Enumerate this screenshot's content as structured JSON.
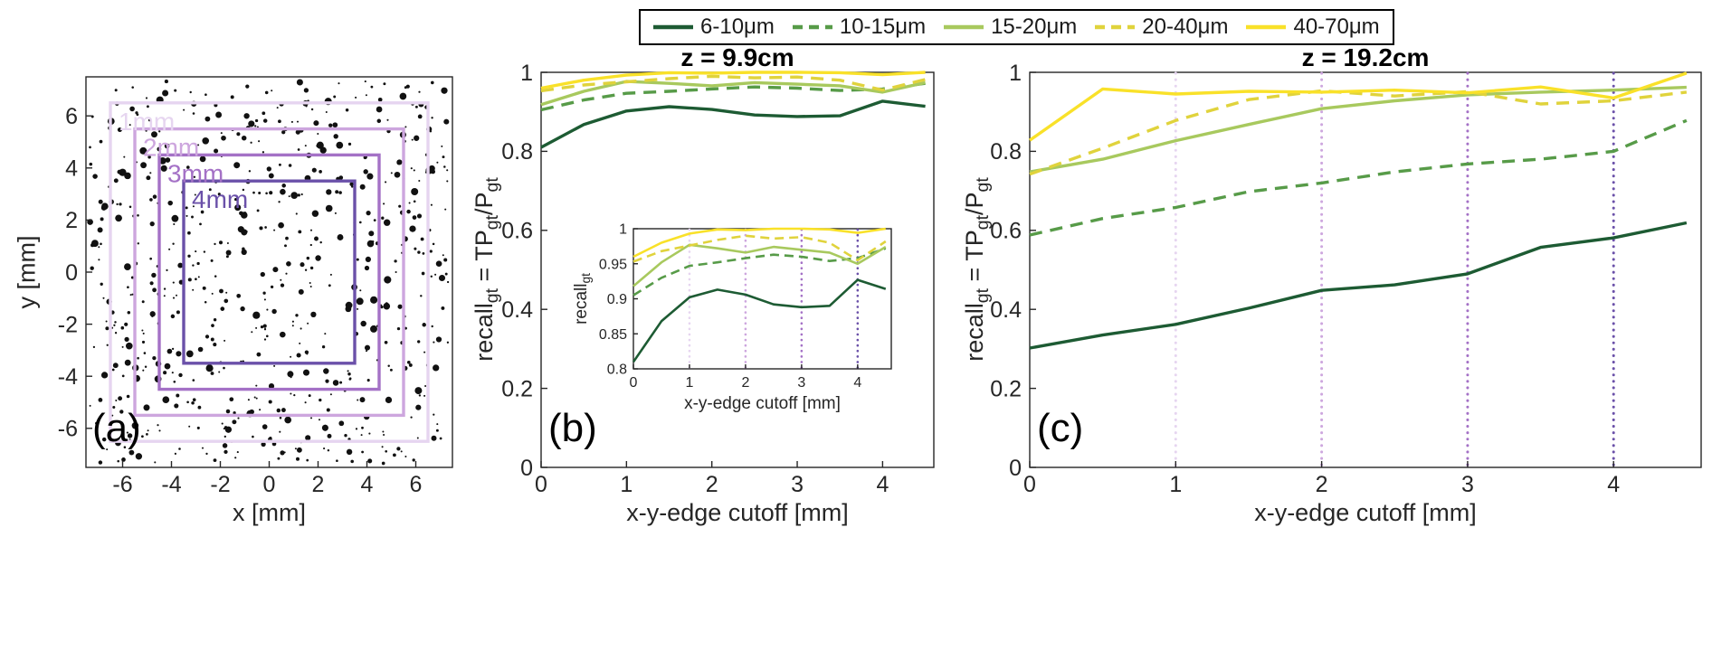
{
  "colors": {
    "background": "#ffffff",
    "axis": "#262626",
    "cutoff_palette": [
      "#e6d5f0",
      "#cda6de",
      "#a471c6",
      "#6b51a9"
    ]
  },
  "legend": {
    "items": [
      {
        "label": "6-10μm",
        "color": "#1d5b33",
        "dash": false
      },
      {
        "label": "10-15μm",
        "color": "#579b48",
        "dash": true
      },
      {
        "label": "15-20μm",
        "color": "#a8c95e",
        "dash": false
      },
      {
        "label": "20-40μm",
        "color": "#e0d33c",
        "dash": true
      },
      {
        "label": "40-70μm",
        "color": "#f9e129",
        "dash": false
      }
    ]
  },
  "chart_data": [
    {
      "type": "scatter",
      "panel_label": "(a)",
      "xlabel": "x [mm]",
      "ylabel": "y [mm]",
      "xlim": [
        -7.5,
        7.5
      ],
      "ylim": [
        -7.5,
        7.5
      ],
      "xticks": [
        -6,
        -4,
        -2,
        0,
        2,
        4,
        6
      ],
      "yticks": [
        -6,
        -4,
        -2,
        0,
        2,
        4,
        6
      ],
      "points": {
        "n": 680,
        "seed": 13,
        "marker_color": "#111111"
      },
      "cutoff_squares": [
        {
          "label": "1mm",
          "half_width": 6.5,
          "color": "#e6d5f0"
        },
        {
          "label": "2mm",
          "half_width": 5.5,
          "color": "#cda6de"
        },
        {
          "label": "3mm",
          "half_width": 4.5,
          "color": "#a471c6"
        },
        {
          "label": "4mm",
          "half_width": 3.5,
          "color": "#6b51a9"
        }
      ]
    },
    {
      "type": "line",
      "panel_label": "(b)",
      "title": "z = 9.9cm",
      "xlabel": "x-y-edge cutoff [mm]",
      "ylabel": "recall_gt = TP_gt/P_gt",
      "xlim": [
        0,
        4.6
      ],
      "ylim": [
        0,
        1
      ],
      "xticks": [
        0,
        1,
        2,
        3,
        4
      ],
      "yticks": [
        0,
        0.2,
        0.4,
        0.6,
        0.8,
        1
      ],
      "x": [
        0,
        0.5,
        1,
        1.5,
        2,
        2.5,
        3,
        3.5,
        4,
        4.5
      ],
      "series": [
        {
          "name": "6-10μm",
          "values": [
            0.81,
            0.868,
            0.902,
            0.913,
            0.906,
            0.892,
            0.888,
            0.89,
            0.927,
            0.914
          ]
        },
        {
          "name": "10-15μm",
          "values": [
            0.905,
            0.93,
            0.947,
            0.952,
            0.958,
            0.963,
            0.96,
            0.954,
            0.958,
            0.972
          ]
        },
        {
          "name": "15-20μm",
          "values": [
            0.918,
            0.952,
            0.977,
            0.972,
            0.966,
            0.974,
            0.97,
            0.966,
            0.95,
            0.974
          ]
        },
        {
          "name": "20-40μm",
          "values": [
            0.953,
            0.968,
            0.976,
            0.984,
            0.99,
            0.986,
            0.988,
            0.98,
            0.955,
            0.982
          ]
        },
        {
          "name": "40-70μm",
          "values": [
            0.96,
            0.98,
            0.993,
            0.999,
            0.998,
            1.0,
            1.0,
            0.999,
            0.994,
            1.0
          ]
        }
      ],
      "inset": {
        "xlabel": "x-y-edge cutoff [mm]",
        "ylabel": "recall_gt",
        "xlim": [
          0,
          4.6
        ],
        "ylim": [
          0.8,
          1
        ],
        "xticks": [
          0,
          1,
          2,
          3,
          4
        ],
        "yticks": [
          0.8,
          0.85,
          0.9,
          0.95,
          1
        ],
        "cutoff_lines": [
          1,
          2,
          3,
          4
        ]
      }
    },
    {
      "type": "line",
      "panel_label": "(c)",
      "title": "z = 19.2cm",
      "xlabel": "x-y-edge cutoff [mm]",
      "ylabel": "recall_gt = TP_gt/P_gt",
      "xlim": [
        0,
        4.6
      ],
      "ylim": [
        0,
        1
      ],
      "xticks": [
        0,
        1,
        2,
        3,
        4
      ],
      "yticks": [
        0,
        0.2,
        0.4,
        0.6,
        0.8,
        1
      ],
      "x": [
        0,
        0.5,
        1,
        1.5,
        2,
        2.5,
        3,
        3.5,
        4,
        4.5
      ],
      "cutoff_lines": [
        1,
        2,
        3,
        4
      ],
      "series": [
        {
          "name": "6-10μm",
          "values": [
            0.302,
            0.335,
            0.362,
            0.403,
            0.448,
            0.462,
            0.49,
            0.557,
            0.581,
            0.619
          ]
        },
        {
          "name": "10-15μm",
          "values": [
            0.588,
            0.63,
            0.658,
            0.698,
            0.72,
            0.748,
            0.768,
            0.78,
            0.8,
            0.878
          ]
        },
        {
          "name": "15-20μm",
          "values": [
            0.748,
            0.78,
            0.827,
            0.868,
            0.908,
            0.928,
            0.943,
            0.95,
            0.955,
            0.962
          ]
        },
        {
          "name": "20-40μm",
          "values": [
            0.742,
            0.808,
            0.878,
            0.931,
            0.953,
            0.94,
            0.951,
            0.92,
            0.928,
            0.95
          ]
        },
        {
          "name": "40-70μm",
          "values": [
            0.828,
            0.958,
            0.945,
            0.952,
            0.95,
            0.955,
            0.948,
            0.963,
            0.935,
            0.998
          ]
        }
      ]
    }
  ]
}
